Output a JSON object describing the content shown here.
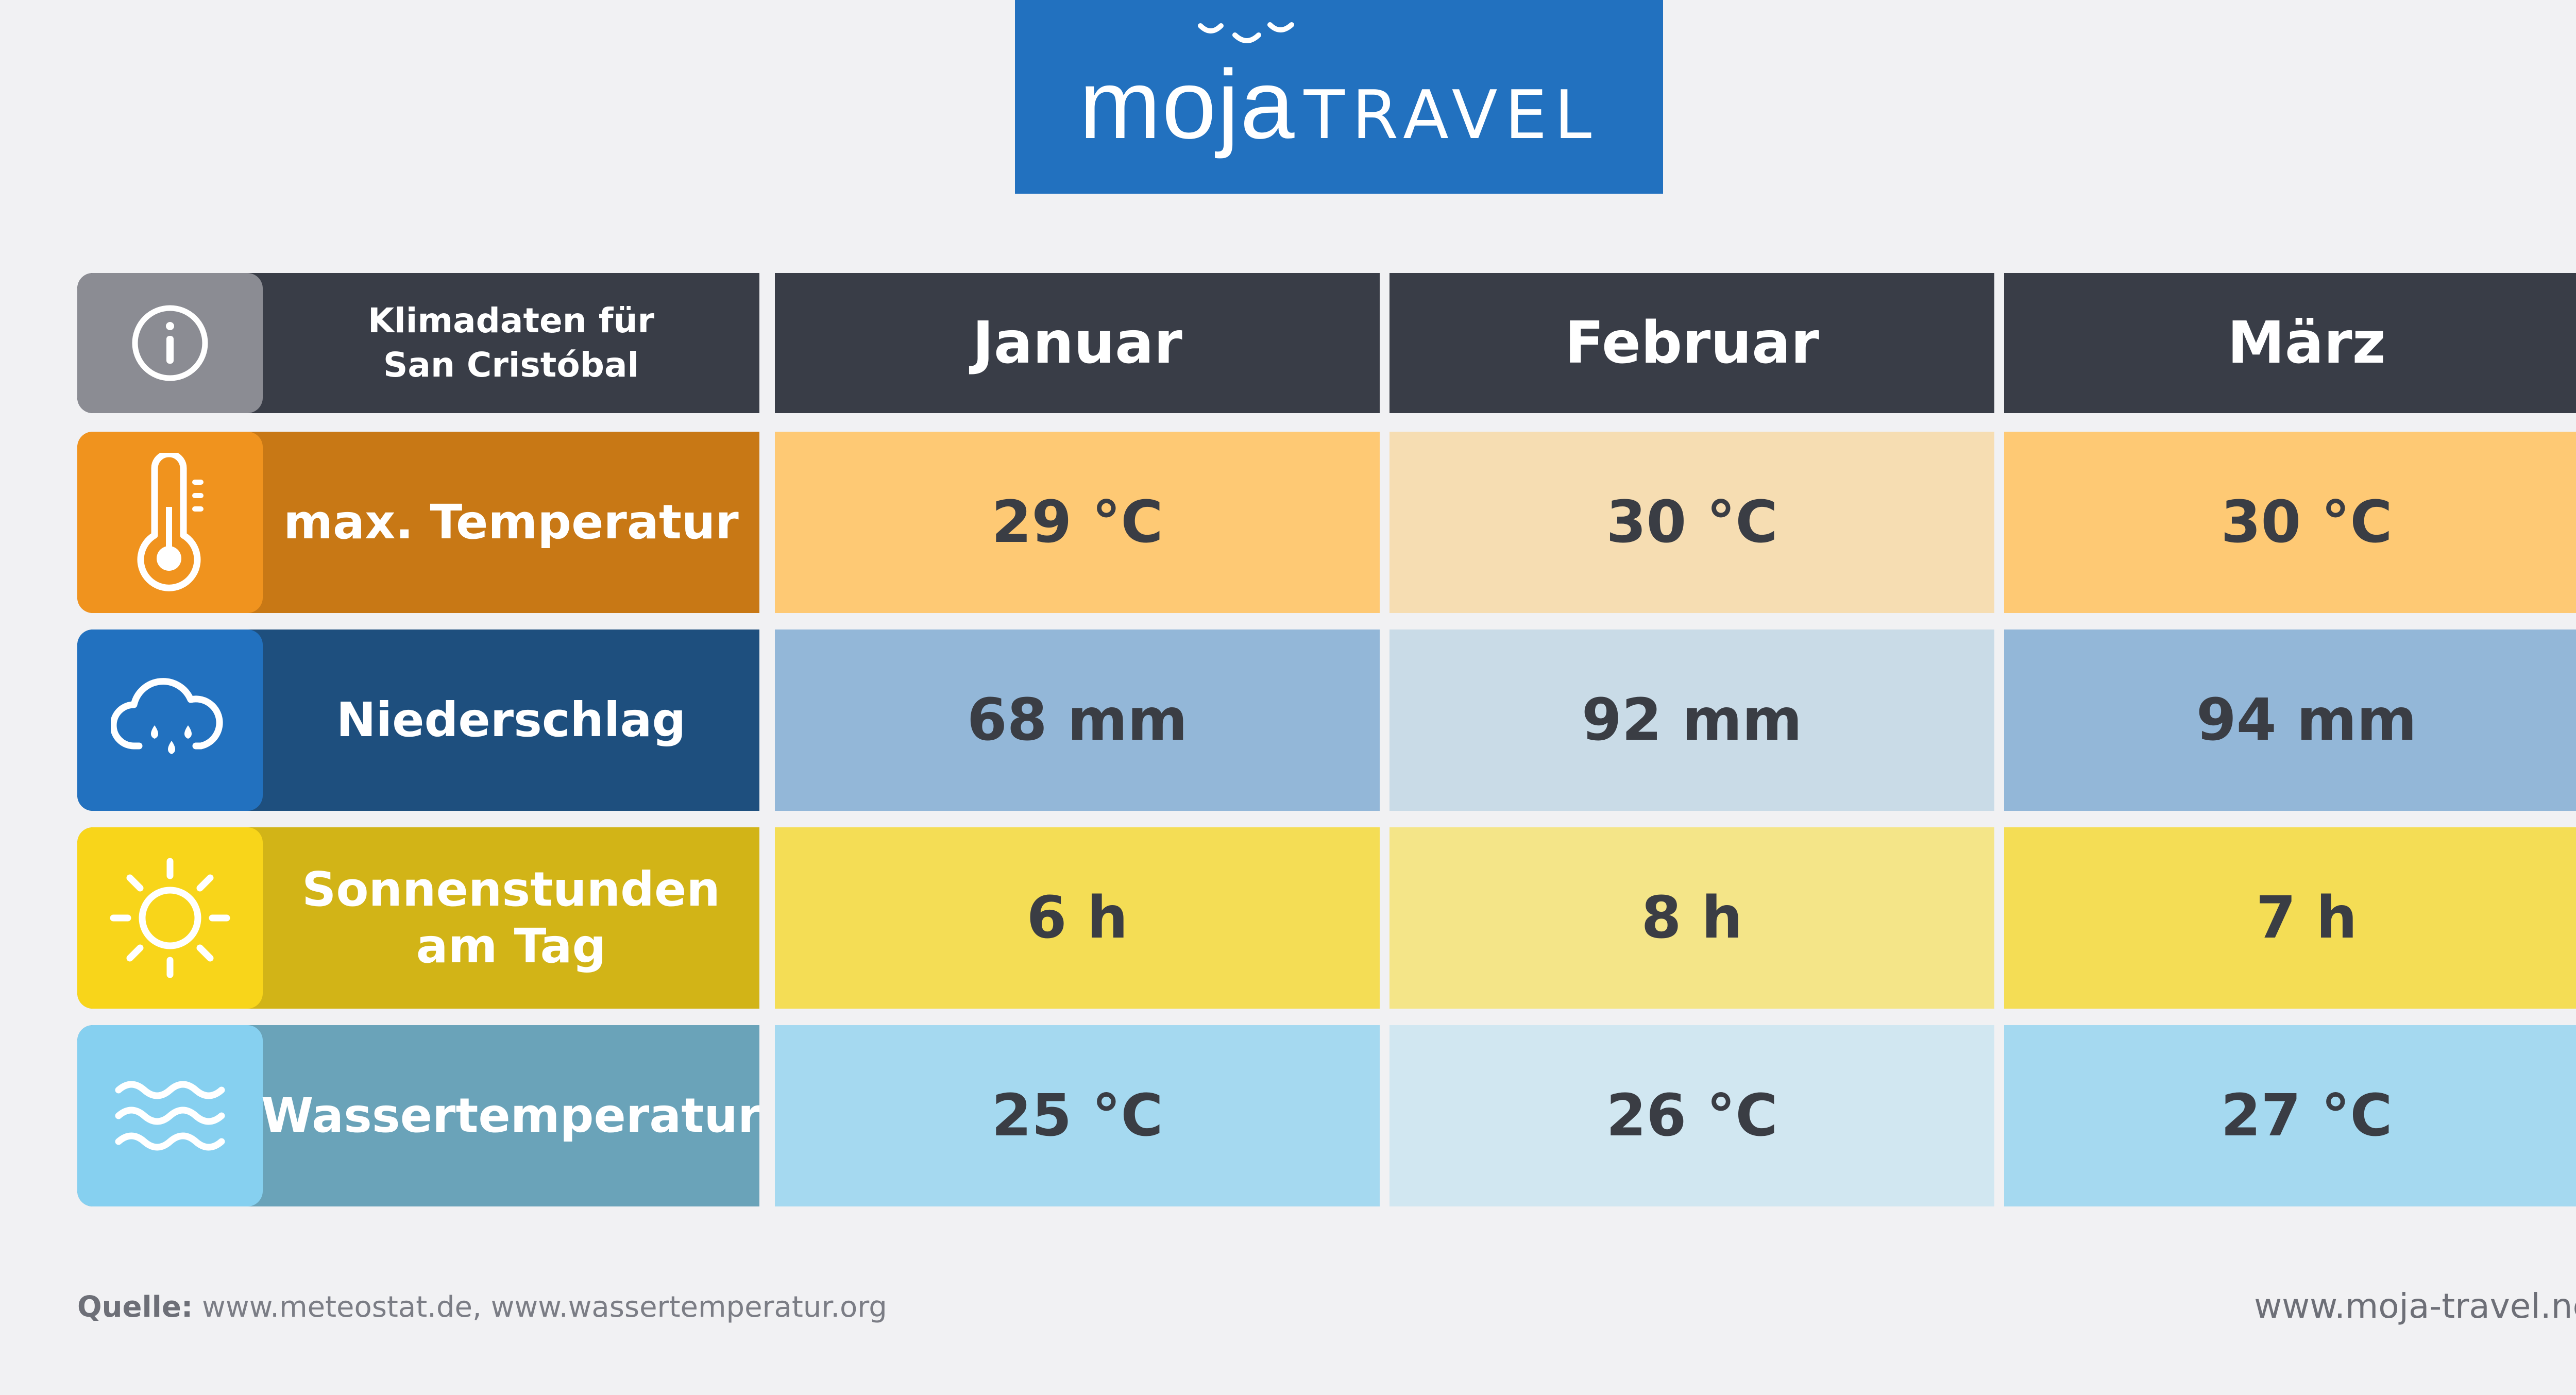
{
  "logo": {
    "brand": "moja",
    "suffix": "TRAVEL"
  },
  "header": {
    "title": "Klimadaten für\nSan Cristóbal",
    "months": [
      "Januar",
      "Februar",
      "März"
    ]
  },
  "rows": [
    {
      "label": "max. Temperatur",
      "icon": "thermometer-icon",
      "values": [
        "29 °C",
        "30 °C",
        "30 °C"
      ]
    },
    {
      "label": "Niederschlag",
      "icon": "rain-cloud-icon",
      "values": [
        "68 mm",
        "92 mm",
        "94 mm"
      ]
    },
    {
      "label": "Sonnenstunden am Tag",
      "icon": "sun-icon",
      "values": [
        "6 h",
        "8 h",
        "7 h"
      ]
    },
    {
      "label": "Wassertemperatur",
      "icon": "waves-icon",
      "values": [
        "25 °C",
        "26 °C",
        "27 °C"
      ]
    }
  ],
  "colors": {
    "header_dark": "#393d47",
    "info_icon_bg": "#8b8c93",
    "temperature_icon_bg": "#f0931e",
    "temperature_label_bg": "#c87815",
    "precipitation_icon_bg": "#2271bf",
    "precipitation_label_bg": "#1e4f7e",
    "sunshine_icon_bg": "#f8d51a",
    "sunshine_label_bg": "#d2b417",
    "water_icon_bg": "#86d0f0",
    "water_label_bg": "#6aa3b9"
  },
  "footer": {
    "source_label": "Quelle:",
    "source_text": " www.meteostat.de, www.wassertemperatur.org",
    "website": "www.moja-travel.net"
  }
}
